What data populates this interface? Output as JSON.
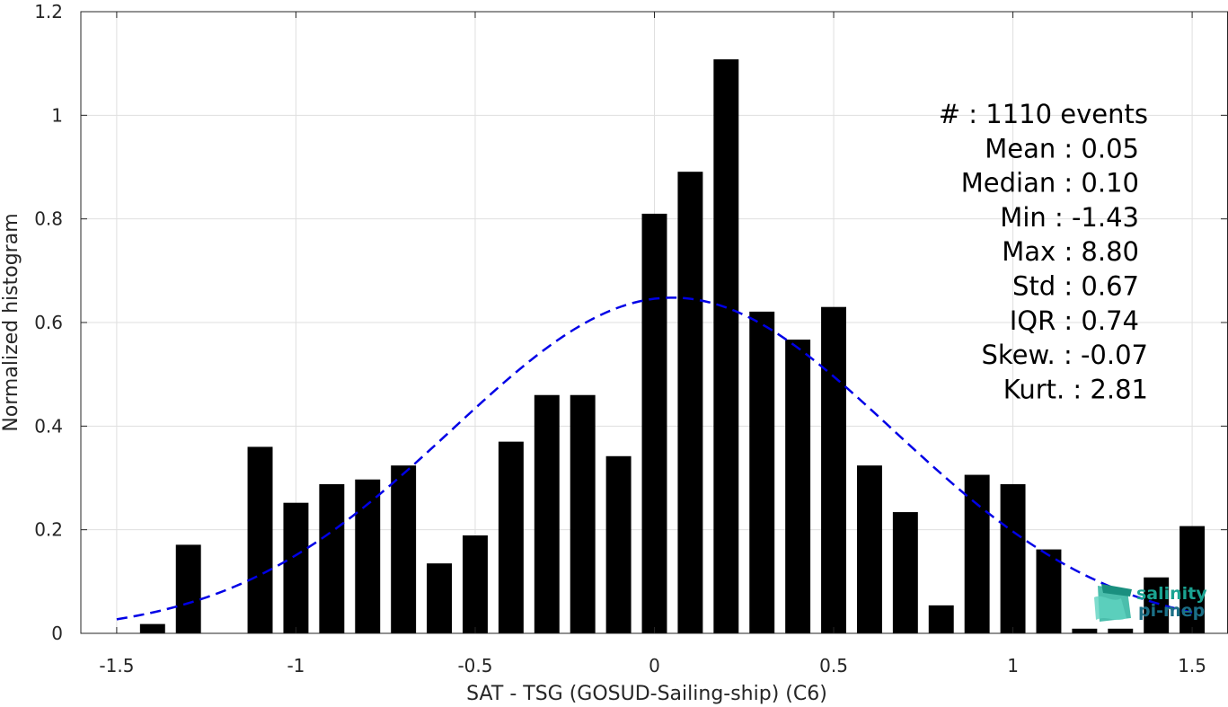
{
  "chart_data": {
    "type": "bar",
    "xlabel": "SAT - TSG (GOSUD-Sailing-ship) (C6)",
    "ylabel": "Normalized histogram",
    "xlim": [
      -1.6,
      1.6
    ],
    "ylim": [
      0,
      1.2
    ],
    "xticks": [
      -1.5,
      -1,
      -0.5,
      0,
      0.5,
      1,
      1.5
    ],
    "xtick_labels": [
      "-1.5",
      "-1",
      "-0.5",
      "0",
      "0.5",
      "1",
      "1.5"
    ],
    "yticks": [
      0,
      0.2,
      0.4,
      0.6,
      0.8,
      1,
      1.2
    ],
    "ytick_labels": [
      "0",
      "0.2",
      "0.4",
      "0.6",
      "0.8",
      "1",
      "1.2"
    ],
    "grid": true,
    "bar_width": 0.07,
    "bars": [
      {
        "x": -1.4,
        "value": 0.018
      },
      {
        "x": -1.3,
        "value": 0.171
      },
      {
        "x": -1.1,
        "value": 0.36
      },
      {
        "x": -1.0,
        "value": 0.252
      },
      {
        "x": -0.9,
        "value": 0.288
      },
      {
        "x": -0.8,
        "value": 0.297
      },
      {
        "x": -0.7,
        "value": 0.324
      },
      {
        "x": -0.6,
        "value": 0.135
      },
      {
        "x": -0.5,
        "value": 0.189
      },
      {
        "x": -0.4,
        "value": 0.37
      },
      {
        "x": -0.3,
        "value": 0.46
      },
      {
        "x": -0.2,
        "value": 0.46
      },
      {
        "x": -0.1,
        "value": 0.342
      },
      {
        "x": 0.0,
        "value": 0.81
      },
      {
        "x": 0.1,
        "value": 0.891
      },
      {
        "x": 0.2,
        "value": 1.108
      },
      {
        "x": 0.3,
        "value": 0.621
      },
      {
        "x": 0.4,
        "value": 0.567
      },
      {
        "x": 0.5,
        "value": 0.63
      },
      {
        "x": 0.6,
        "value": 0.324
      },
      {
        "x": 0.7,
        "value": 0.234
      },
      {
        "x": 0.8,
        "value": 0.054
      },
      {
        "x": 0.9,
        "value": 0.306
      },
      {
        "x": 1.0,
        "value": 0.288
      },
      {
        "x": 1.1,
        "value": 0.162
      },
      {
        "x": 1.2,
        "value": 0.009
      },
      {
        "x": 1.3,
        "value": 0.009
      },
      {
        "x": 1.4,
        "value": 0.108
      },
      {
        "x": 1.5,
        "value": 0.207
      }
    ],
    "fit_curve": {
      "style": "dashed",
      "color": "#0000e6",
      "mean": 0.05,
      "std": 0.615,
      "peak": 0.648,
      "x_range": [
        -1.5,
        1.5
      ]
    },
    "stats": [
      {
        "label": "#  ",
        "value": "1110 events"
      },
      {
        "label": "Mean",
        "value": "0.05"
      },
      {
        "label": "Median",
        "value": "0.10"
      },
      {
        "label": "Min",
        "value": "-1.43"
      },
      {
        "label": "Max",
        "value": "8.80"
      },
      {
        "label": "Std",
        "value": "0.67"
      },
      {
        "label": "IQR",
        "value": "0.74"
      },
      {
        "label": "Skew.",
        "value": "-0.07"
      },
      {
        "label": "Kurt.",
        "value": "2.81"
      }
    ]
  },
  "logo": {
    "line1": "salinity",
    "line2": "pi-mep"
  },
  "colors": {
    "bar": "#000000",
    "fit": "#0000e6",
    "grid": "#dfdfdf",
    "axis": "#262626",
    "logo_teal": "#1aa392"
  }
}
